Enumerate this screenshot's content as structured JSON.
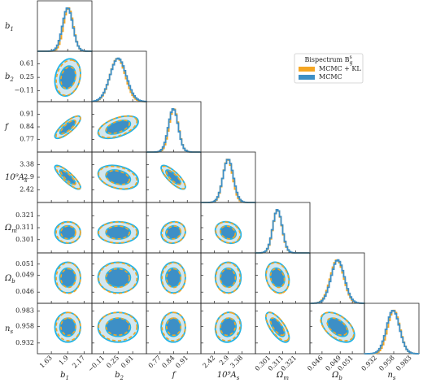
{
  "chart_data": {
    "type": "corner",
    "parameters": [
      {
        "symbol": "b",
        "sub": "1",
        "lim": [
          1.4,
          2.3
        ],
        "ticks": [
          1.63,
          1.9,
          2.17
        ]
      },
      {
        "symbol": "b",
        "sub": "2",
        "lim": [
          -0.4,
          0.95
        ],
        "ticks": [
          {
            "value": -0.11,
            "label": "−0.11"
          },
          0.25,
          0.61
        ]
      },
      {
        "symbol": "f",
        "sub": "",
        "lim": [
          0.7,
          0.98
        ],
        "ticks": [
          0.77,
          0.84,
          0.91
        ]
      },
      {
        "symbol": "10⁹A",
        "sub": "s",
        "lim": [
          1.95,
          3.85
        ],
        "ticks": [
          2.42,
          2.9,
          3.38
        ]
      },
      {
        "symbol": "Ω",
        "sub": "m",
        "lim": [
          0.29,
          0.332
        ],
        "ticks": [
          0.301,
          0.311,
          0.321
        ]
      },
      {
        "symbol": "Ω",
        "sub": "b",
        "lim": [
          0.044,
          0.053
        ],
        "ticks": [
          0.046,
          0.049,
          0.051
        ]
      },
      {
        "symbol": "n",
        "sub": "s",
        "lim": [
          0.915,
          0.995
        ],
        "ticks": [
          0.932,
          0.958,
          0.983
        ]
      }
    ],
    "series": [
      {
        "name": "MCMC + KL",
        "color": "#f5a623",
        "mean": [
          1.91,
          0.24,
          0.84,
          2.89,
          0.307,
          0.0485,
          0.958
        ],
        "sigma": [
          0.08,
          0.19,
          0.024,
          0.17,
          0.0035,
          0.0011,
          0.009
        ]
      },
      {
        "name": "MCMC",
        "color": "#3d8fc6",
        "mean": [
          1.9,
          0.25,
          0.838,
          2.9,
          0.307,
          0.0486,
          0.957
        ],
        "sigma": [
          0.085,
          0.2,
          0.025,
          0.18,
          0.0036,
          0.0011,
          0.0095
        ]
      }
    ],
    "correlations": [
      0.2,
      0.8,
      0.5,
      -0.85,
      -0.3,
      -0.8,
      0,
      0,
      0.1,
      -0.2,
      0,
      0,
      0,
      0,
      -0.2,
      0,
      0,
      0,
      0.1,
      -0.7,
      -0.5
    ],
    "legend": {
      "title": "Bispectrum B",
      "title_sup": "s",
      "title_sub": "g"
    }
  }
}
